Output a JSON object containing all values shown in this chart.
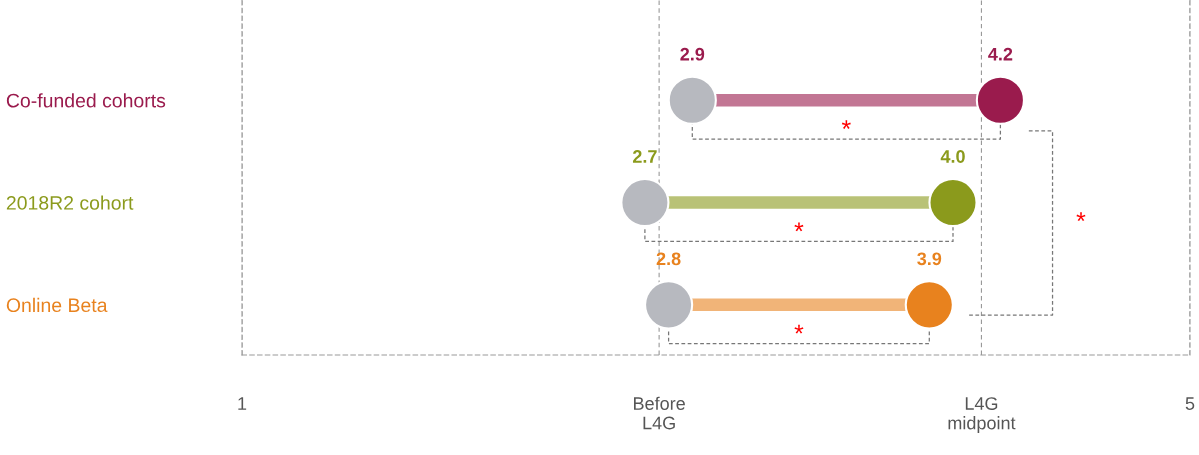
{
  "chart_data": {
    "type": "scatter",
    "orientation": "horizontal",
    "categories": [
      "Co-funded cohorts",
      "2018R2 cohort",
      "Online Beta"
    ],
    "series": [
      {
        "colors": [
          "#b7b9bf",
          "#b7b9bf",
          "#b7b9bf"
        ],
        "values": [
          2.9,
          2.7,
          2.8
        ],
        "value_labels": [
          "2.9",
          "2.7",
          "2.8"
        ]
      },
      {
        "colors": [
          "#9a1b4d",
          "#8b9a1c",
          "#e8821e"
        ],
        "values": [
          4.2,
          4.0,
          3.9
        ],
        "value_labels": [
          "4.2",
          "4.0",
          "3.9"
        ]
      }
    ],
    "xlim": [
      1,
      5
    ],
    "xticks": [
      1,
      {
        "value": 2.76,
        "label": "Before\nL4G"
      },
      {
        "value": 4.12,
        "label": "L4G\nmidpoint"
      },
      5
    ],
    "grid": "x",
    "legend": false,
    "marker": "circle",
    "annotations": [
      "*",
      "*",
      "*",
      "*"
    ]
  }
}
